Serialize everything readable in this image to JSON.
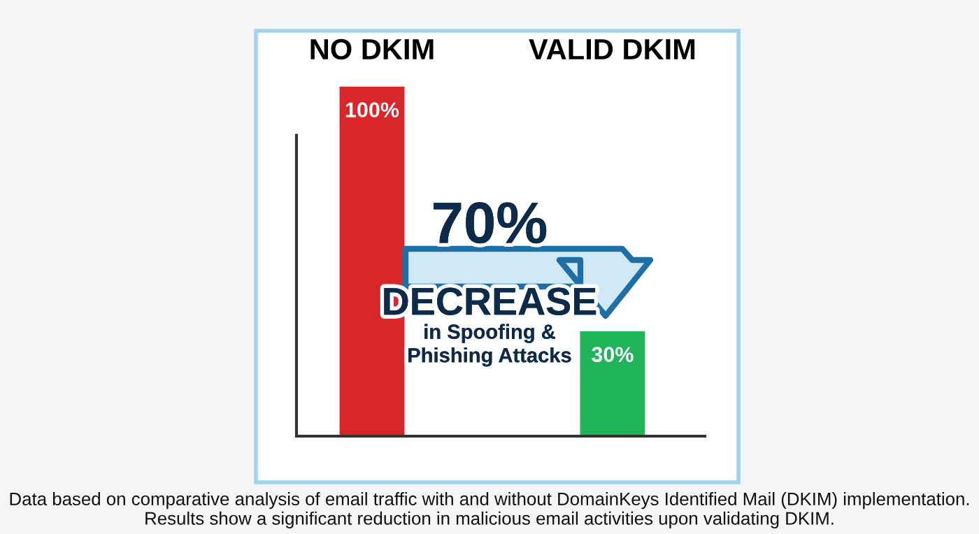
{
  "chart_data": {
    "type": "bar",
    "categories": [
      "NO DKIM",
      "VALID DKIM"
    ],
    "values": [
      100,
      30
    ],
    "colors": [
      "#d8262b",
      "#1fb45a"
    ],
    "value_labels": [
      "100%",
      "30%"
    ],
    "tick_labels": "x",
    "grid": false,
    "annotations": [
      "70%",
      "DECREASE",
      "in Spoofing &\nPhishing Attacks",
      "Data based on comparative analysis of email traffic with and without DomainKeys Identified Mail (DKIM) implementation. Results show a significant reduction in malicious email activities upon validating DKIM."
    ]
  }
}
